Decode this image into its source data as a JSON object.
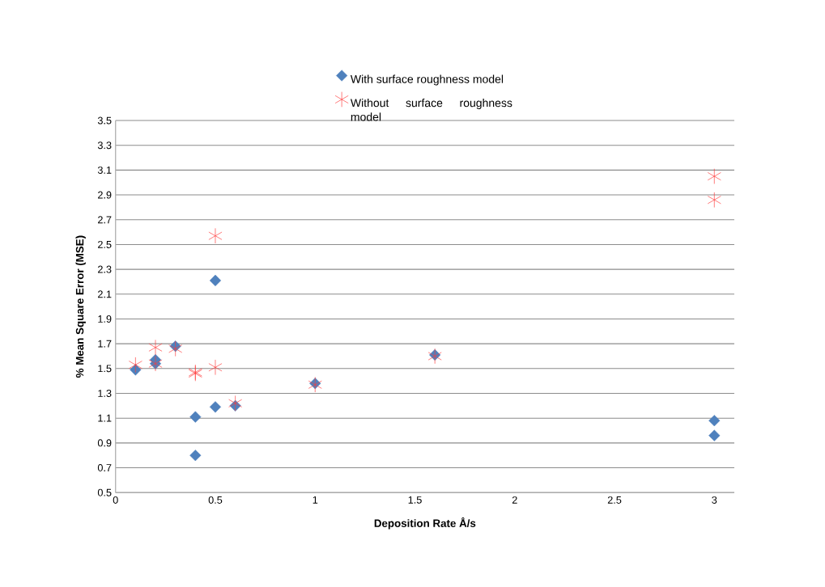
{
  "chart_data": {
    "type": "scatter",
    "xlabel": "Deposition Rate Å/s",
    "ylabel": "% Mean Square Error (MSE)",
    "xlim": [
      0,
      3.1
    ],
    "xticks": [
      0,
      0.5,
      1,
      1.5,
      2,
      2.5,
      3
    ],
    "ylim": [
      0.5,
      3.5
    ],
    "yticks": [
      {
        "value": 0.5,
        "label": "0.5"
      },
      {
        "value": 0.7,
        "label": "0.7"
      },
      {
        "value": 0.9,
        "label": "0.9"
      },
      {
        "value": 1.1,
        "label": "1.1"
      },
      {
        "value": 1.3,
        "label": "1.3"
      },
      {
        "value": 1.5,
        "label": "1.5"
      },
      {
        "value": 1.7,
        "label": "1.7"
      },
      {
        "value": 1.9,
        "label": "1.9"
      },
      {
        "value": 2.1,
        "label": "2.1"
      },
      {
        "value": 2.3,
        "label": "2.3"
      },
      {
        "value": 2.5,
        "label": "2.5"
      },
      {
        "value": 2.7,
        "label": "2.7"
      },
      {
        "value": 2.9,
        "label": "2.9"
      },
      {
        "value": 3.1,
        "label": "3.1"
      },
      {
        "value": 3.3,
        "label": "3.3"
      },
      {
        "value": 3.5,
        "label": "3.5"
      }
    ],
    "grid": "y",
    "legend": "top",
    "series": [
      {
        "name": "With surface roughness model",
        "color": "#4f81bd",
        "marker": "diamond",
        "x": [
          0.1,
          0.2,
          0.2,
          0.3,
          0.4,
          0.4,
          0.5,
          0.5,
          0.6,
          1,
          1.6,
          3,
          3
        ],
        "values": [
          1.49,
          1.57,
          1.54,
          1.68,
          1.11,
          0.8,
          2.21,
          1.19,
          1.2,
          1.38,
          1.61,
          1.08,
          0.96
        ]
      },
      {
        "name": "Without surface roughness model",
        "color": "#ff3b3b",
        "marker": "cross",
        "x": [
          0.1,
          0.2,
          0.2,
          0.3,
          0.4,
          0.4,
          0.5,
          0.5,
          0.6,
          1,
          1.6,
          3,
          3
        ],
        "values": [
          1.53,
          1.67,
          1.54,
          1.66,
          1.47,
          1.46,
          2.57,
          1.51,
          1.22,
          1.37,
          1.6,
          3.05,
          2.86
        ]
      }
    ]
  }
}
